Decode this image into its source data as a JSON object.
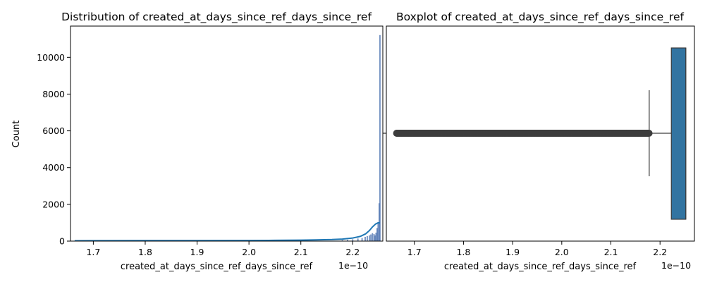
{
  "chart_data": [
    {
      "type": "histogram",
      "title": "Distribution of created_at_days_since_ref_days_since_ref",
      "xlabel": "created_at_days_since_ref_days_since_ref",
      "ylabel": "Count",
      "x_offset_label": "1e−10",
      "xlim": [
        1.656,
        2.258
      ],
      "ylim": [
        0,
        11700
      ],
      "xticks": [
        "1.7",
        "1.8",
        "1.9",
        "2.0",
        "2.1",
        "2.2"
      ],
      "xtick_values": [
        1.7,
        1.8,
        1.9,
        2.0,
        2.1,
        2.2
      ],
      "yticks": [
        "0",
        "2000",
        "4000",
        "6000",
        "8000",
        "10000"
      ],
      "ytick_values": [
        0,
        2000,
        4000,
        6000,
        8000,
        10000
      ],
      "bar_color": "#4c72b0",
      "kde_color": "#1f77b4",
      "bars": [
        {
          "x": 2.18,
          "count": 40
        },
        {
          "x": 2.19,
          "count": 60
        },
        {
          "x": 2.2,
          "count": 90
        },
        {
          "x": 2.21,
          "count": 130
        },
        {
          "x": 2.218,
          "count": 160
        },
        {
          "x": 2.224,
          "count": 220
        },
        {
          "x": 2.228,
          "count": 260
        },
        {
          "x": 2.232,
          "count": 300
        },
        {
          "x": 2.235,
          "count": 350
        },
        {
          "x": 2.238,
          "count": 420
        },
        {
          "x": 2.241,
          "count": 380
        },
        {
          "x": 2.243,
          "count": 300
        },
        {
          "x": 2.245,
          "count": 450
        },
        {
          "x": 2.247,
          "count": 700
        },
        {
          "x": 2.249,
          "count": 1000
        },
        {
          "x": 2.251,
          "count": 2050
        },
        {
          "x": 2.2525,
          "count": 11200
        }
      ],
      "kde": {
        "x": [
          1.664,
          1.7,
          1.8,
          1.9,
          2.0,
          2.05,
          2.1,
          2.13,
          2.16,
          2.18,
          2.2,
          2.215,
          2.225,
          2.232,
          2.238,
          2.244,
          2.249,
          2.2525
        ],
        "y": [
          20,
          22,
          25,
          28,
          35,
          42,
          55,
          65,
          85,
          110,
          170,
          260,
          400,
          570,
          770,
          930,
          1000,
          990
        ]
      }
    },
    {
      "type": "boxplot",
      "title": "Boxplot of created_at_days_since_ref_days_since_ref",
      "xlabel": "created_at_days_since_ref_days_since_ref",
      "x_offset_label": "1e−10",
      "xlim": [
        1.643,
        2.27
      ],
      "xticks": [
        "1.7",
        "1.8",
        "1.9",
        "2.0",
        "2.1",
        "2.2"
      ],
      "xtick_values": [
        1.7,
        1.8,
        1.9,
        2.0,
        2.1,
        2.2
      ],
      "box_color": "#3274a1",
      "q1": 2.223,
      "median": 2.2525,
      "q3": 2.2525,
      "whisker_low": 2.178,
      "whisker_high": 2.2525,
      "outlier_range": [
        1.664,
        2.178
      ],
      "outlier_color": "#3d3d3d"
    }
  ]
}
